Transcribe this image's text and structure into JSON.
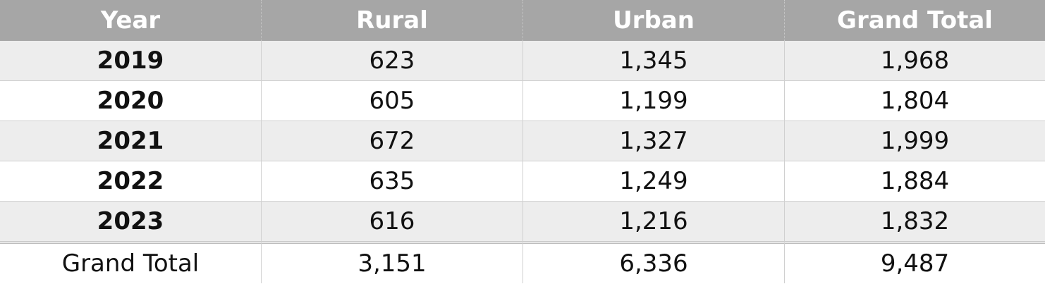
{
  "table": {
    "header": [
      "Year",
      "Rural",
      "Urban",
      "Grand Total"
    ],
    "rows": [
      [
        "2019",
        "623",
        "1,345",
        "1,968"
      ],
      [
        "2020",
        "605",
        "1,199",
        "1,804"
      ],
      [
        "2021",
        "672",
        "1,327",
        "1,999"
      ],
      [
        "2022",
        "635",
        "1,249",
        "1,884"
      ],
      [
        "2023",
        "616",
        "1,216",
        "1,832"
      ]
    ],
    "total": [
      "Grand Total",
      "3,151",
      "6,336",
      "9,487"
    ]
  }
}
